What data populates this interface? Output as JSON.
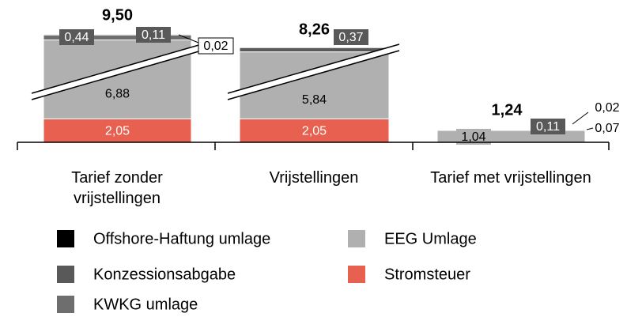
{
  "chart_data": {
    "type": "stacked_bar",
    "categories": [
      "Tarief zonder vrijstellingen",
      "Vrijstellingen",
      "Tarief met vrijstellingen"
    ],
    "series": [
      {
        "name": "Stromsteuer",
        "color": "#e8604f",
        "values": [
          2.05,
          2.05,
          null
        ],
        "value_labels": [
          "2,05",
          "2,05",
          null
        ]
      },
      {
        "name": "EEG Umlage",
        "color": "#b0b0b0",
        "values": [
          6.88,
          5.84,
          1.04
        ],
        "value_labels": [
          "6,88",
          "5,84",
          "1,04"
        ]
      },
      {
        "name": "KWKG umlage",
        "color": "#6e6e6e",
        "values": [
          0.44,
          null,
          0.07
        ],
        "value_labels": [
          "0,44",
          null,
          "0,07"
        ]
      },
      {
        "name": "Konzessionsabgabe",
        "color": "#595959",
        "values": [
          0.11,
          0.37,
          0.11
        ],
        "value_labels": [
          "0,11",
          "0,37",
          "0,11"
        ]
      },
      {
        "name": "Offshore-Haftung umlage",
        "color": "#000000",
        "values": [
          0.02,
          null,
          0.02
        ],
        "value_labels": [
          "0,02",
          null,
          "0,02"
        ]
      }
    ],
    "totals": {
      "values": [
        9.5,
        8.26,
        1.24
      ],
      "value_labels": [
        "9,50",
        "8,26",
        "1,24"
      ]
    }
  }
}
